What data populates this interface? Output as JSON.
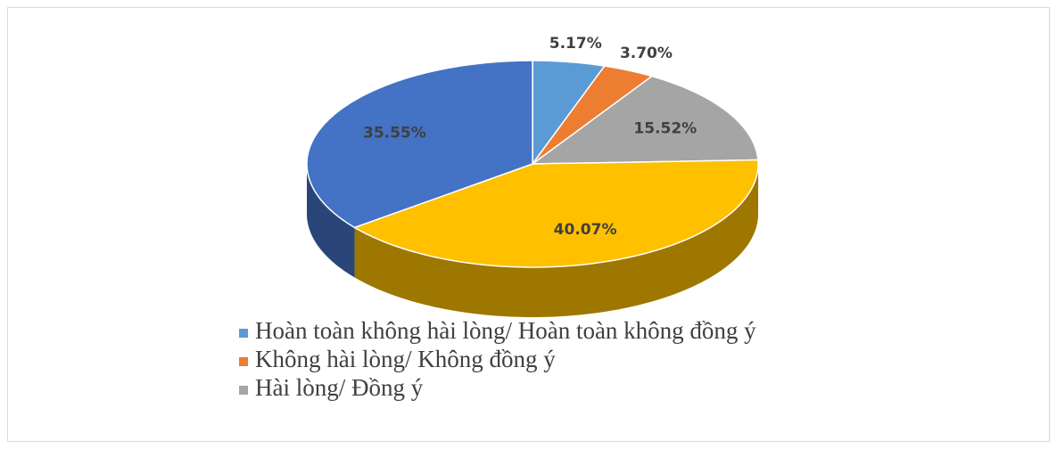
{
  "chart_data": {
    "type": "pie3d",
    "categories": [
      "Hoàn toàn không hài lòng/ Hoàn toàn không đồng ý",
      "Không hài lòng/ Không đồng ý",
      "Hài lòng/ Đồng ý",
      null,
      null
    ],
    "values": [
      5.17,
      3.7,
      15.52,
      40.07,
      35.55
    ],
    "value_labels": [
      "5.17%",
      "3.70%",
      "15.52%",
      "40.07%",
      "35.55%"
    ],
    "colors": [
      "#5b9bd5",
      "#ed7d31",
      "#a5a5a5",
      "#ffc000",
      "#4472c4"
    ]
  }
}
